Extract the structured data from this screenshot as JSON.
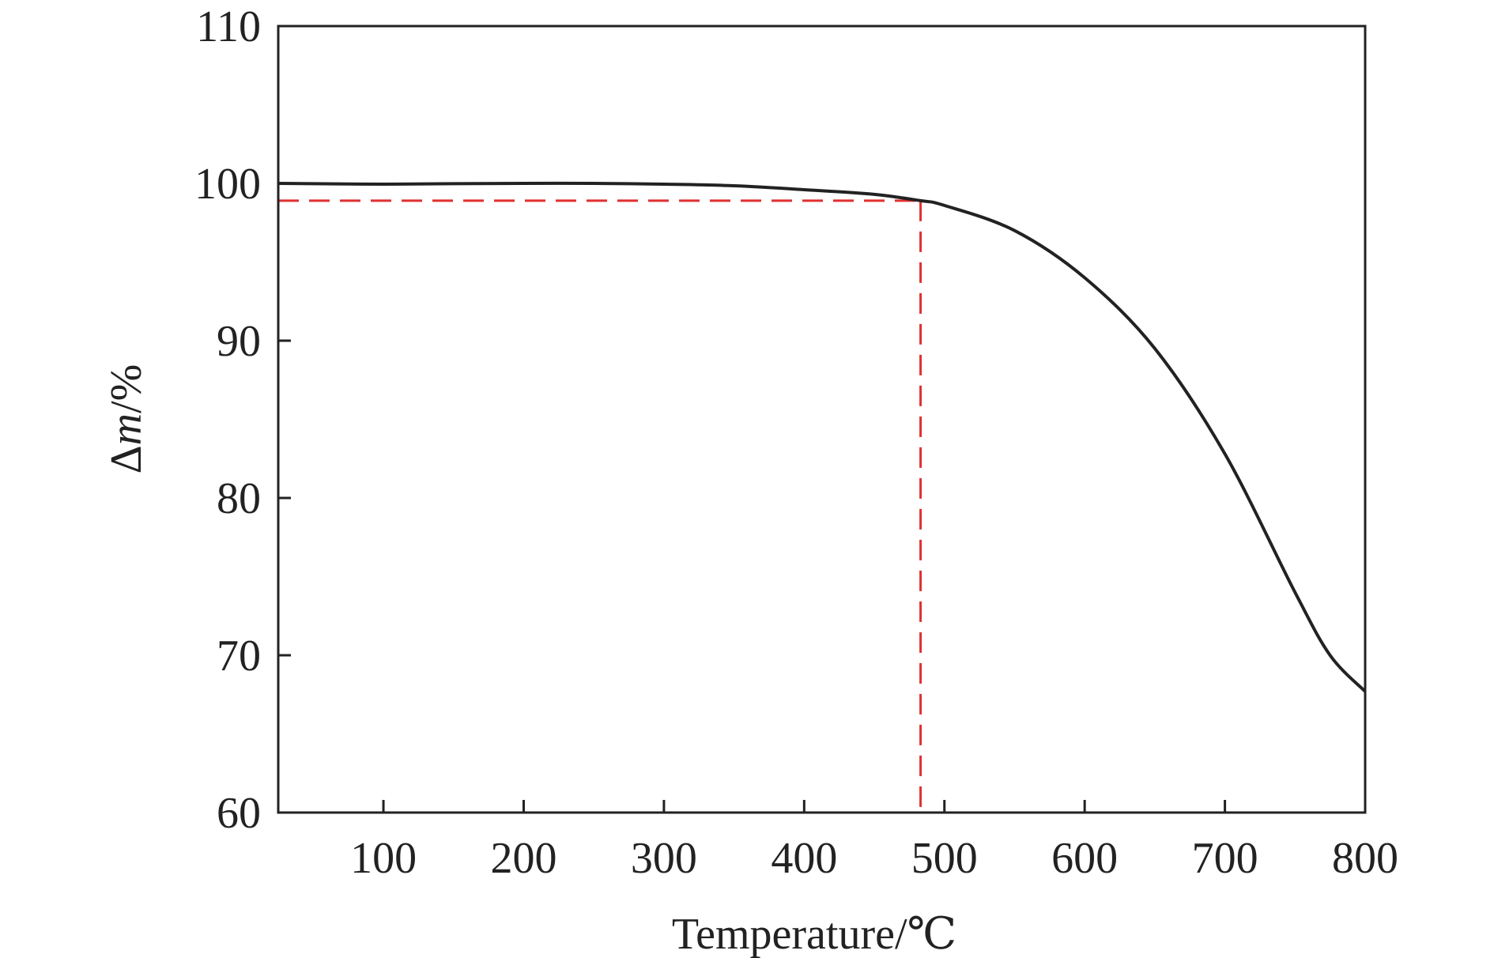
{
  "chart_data": {
    "type": "line",
    "title": "",
    "xlabel": "Temperature/℃",
    "ylabel": {
      "prefix": "Δ",
      "italic": "m",
      "suffix": "/%"
    },
    "xlim": [
      25,
      800
    ],
    "ylim": [
      60,
      110
    ],
    "xticks": [
      100,
      200,
      300,
      400,
      500,
      600,
      700,
      800
    ],
    "yticks": [
      60,
      70,
      80,
      90,
      100,
      110
    ],
    "grid": false,
    "legend": "none",
    "series": [
      {
        "color": "#222222",
        "x": [
          25,
          50,
          100,
          150,
          200,
          250,
          300,
          350,
          400,
          450,
          483,
          500,
          550,
          600,
          650,
          700,
          750,
          775,
          800
        ],
        "y": [
          100.0,
          99.98,
          99.95,
          99.98,
          100.0,
          100.0,
          99.95,
          99.85,
          99.6,
          99.3,
          98.9,
          98.6,
          97.0,
          94.0,
          89.5,
          82.8,
          74.0,
          70.0,
          67.7
        ]
      }
    ],
    "annotations": [
      {
        "type": "reference-lines",
        "x": 483,
        "y": 98.9,
        "color": "#e03030",
        "style": "dashed"
      }
    ]
  }
}
